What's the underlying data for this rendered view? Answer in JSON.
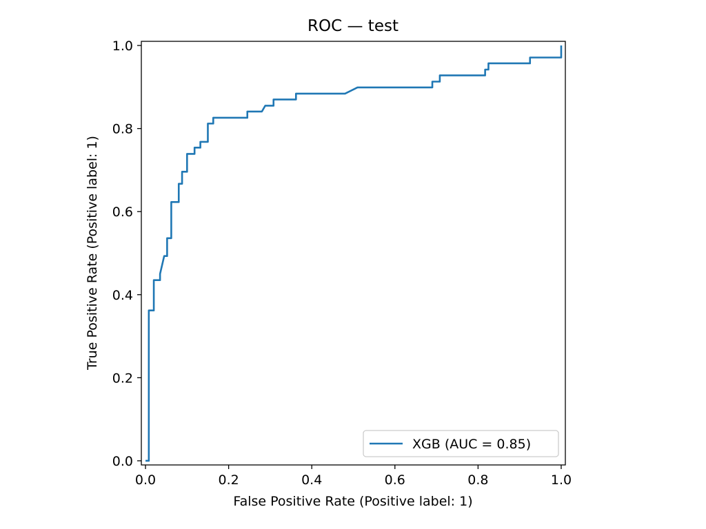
{
  "chart_data": {
    "type": "line",
    "title": "ROC — test",
    "xlabel": "False Positive Rate (Positive label: 1)",
    "ylabel": "True Positive Rate (Positive label: 1)",
    "xlim": [
      -0.01,
      1.01
    ],
    "ylim": [
      -0.01,
      1.01
    ],
    "xticks": [
      0.0,
      0.2,
      0.4,
      0.6,
      0.8,
      1.0
    ],
    "yticks": [
      0.0,
      0.2,
      0.4,
      0.6,
      0.8,
      1.0
    ],
    "xtick_labels": [
      "0.0",
      "0.2",
      "0.4",
      "0.6",
      "0.8",
      "1.0"
    ],
    "ytick_labels": [
      "0.0",
      "0.2",
      "0.4",
      "0.6",
      "0.8",
      "1.0"
    ],
    "grid": false,
    "legend_position": "lower-right",
    "series": [
      {
        "name": "XGB (AUC = 0.85)",
        "color": "#1f77b4",
        "x": [
          0.0,
          0.008,
          0.008,
          0.015,
          0.015,
          0.02,
          0.02,
          0.035,
          0.035,
          0.045,
          0.052,
          0.052,
          0.06,
          0.06,
          0.062,
          0.062,
          0.08,
          0.08,
          0.088,
          0.088,
          0.098,
          0.098,
          0.1,
          0.1,
          0.118,
          0.118,
          0.132,
          0.132,
          0.15,
          0.15,
          0.155,
          0.155,
          0.163,
          0.163,
          0.245,
          0.245,
          0.28,
          0.288,
          0.288,
          0.308,
          0.308,
          0.362,
          0.362,
          0.48,
          0.51,
          0.69,
          0.69,
          0.708,
          0.708,
          0.817,
          0.817,
          0.825,
          0.825,
          0.925,
          0.925,
          1.0,
          1.0
        ],
        "y": [
          0.0,
          0.0,
          0.362,
          0.362,
          0.362,
          0.362,
          0.435,
          0.435,
          0.45,
          0.493,
          0.493,
          0.536,
          0.536,
          0.536,
          0.536,
          0.623,
          0.623,
          0.667,
          0.667,
          0.696,
          0.696,
          0.696,
          0.696,
          0.739,
          0.739,
          0.754,
          0.754,
          0.768,
          0.768,
          0.812,
          0.812,
          0.812,
          0.812,
          0.826,
          0.826,
          0.841,
          0.841,
          0.855,
          0.855,
          0.855,
          0.87,
          0.87,
          0.884,
          0.884,
          0.899,
          0.899,
          0.913,
          0.913,
          0.928,
          0.928,
          0.942,
          0.942,
          0.957,
          0.957,
          0.971,
          0.971,
          1.0
        ]
      }
    ]
  }
}
